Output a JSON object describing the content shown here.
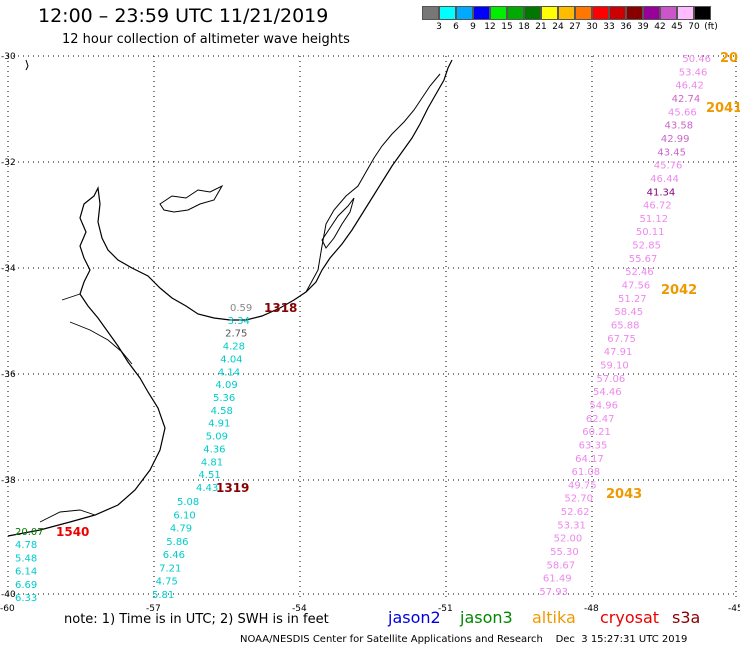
{
  "header": {
    "title": "12:00 – 23:59 UTC 11/21/2019",
    "subtitle": "12 hour collection of altimeter wave heights"
  },
  "legend": {
    "colors": [
      "#777777",
      "#00ffff",
      "#00aaff",
      "#0000ff",
      "#00ee00",
      "#00aa00",
      "#007700",
      "#ffff00",
      "#ffbb00",
      "#ff7700",
      "#ff0000",
      "#cc0000",
      "#880000",
      "#990099",
      "#cc55cc",
      "#ffbbff",
      "#000000"
    ],
    "labels": [
      "3",
      "6",
      "9",
      "12",
      "15",
      "18",
      "21",
      "24",
      "27",
      "30",
      "33",
      "36",
      "39",
      "42",
      "45",
      "70",
      "(ft)"
    ]
  },
  "axes": {
    "lat_labels": [
      "-30",
      "-32",
      "-34",
      "-36",
      "-38",
      "-40"
    ],
    "lon_labels": [
      "-60",
      "-57",
      "-54",
      "-51",
      "-48",
      "-45"
    ]
  },
  "tracks": {
    "track_1318": {
      "label": "1318",
      "label_color": "#880000",
      "points": [
        {
          "v": "0.59",
          "c": "#888888"
        },
        {
          "v": "3.34",
          "c": "#00cccc"
        },
        {
          "v": "2.75",
          "c": "#555555"
        },
        {
          "v": "4.28",
          "c": "#00cccc"
        },
        {
          "v": "4.04",
          "c": "#00cccc"
        },
        {
          "v": "4.14",
          "c": "#00cccc"
        },
        {
          "v": "4.09",
          "c": "#00cccc"
        },
        {
          "v": "5.36",
          "c": "#00cccc"
        },
        {
          "v": "4.58",
          "c": "#00cccc"
        },
        {
          "v": "4.91",
          "c": "#00cccc"
        },
        {
          "v": "5.09",
          "c": "#00cccc"
        },
        {
          "v": "4.36",
          "c": "#00cccc"
        },
        {
          "v": "4.81",
          "c": "#00cccc"
        },
        {
          "v": "4.51",
          "c": "#00cccc"
        },
        {
          "v": "4.43",
          "c": "#00cccc"
        }
      ]
    },
    "track_1319": {
      "label": "1319",
      "label_color": "#880000",
      "points": [
        {
          "v": "5.08",
          "c": "#00cccc"
        },
        {
          "v": "6.10",
          "c": "#00cccc"
        },
        {
          "v": "4.79",
          "c": "#00cccc"
        },
        {
          "v": "5.86",
          "c": "#00cccc"
        },
        {
          "v": "6.46",
          "c": "#00cccc"
        },
        {
          "v": "7.21",
          "c": "#00cccc"
        },
        {
          "v": "4.75",
          "c": "#00cccc"
        },
        {
          "v": "5.81",
          "c": "#00cccc"
        }
      ]
    },
    "track_1540": {
      "label": "1540",
      "label_color": "#ee0000",
      "points": [
        {
          "v": "20.07",
          "c": "#007700"
        },
        {
          "v": "4.78",
          "c": "#00cccc"
        },
        {
          "v": "5.48",
          "c": "#00cccc"
        },
        {
          "v": "6.14",
          "c": "#00cccc"
        },
        {
          "v": "6.69",
          "c": "#00cccc"
        },
        {
          "v": "6.33",
          "c": "#00cccc"
        }
      ]
    },
    "track_east": {
      "markers": [
        {
          "label": "20",
          "color": "#ee9900"
        },
        {
          "label": "2041",
          "color": "#ee9900"
        },
        {
          "label": "2042",
          "color": "#ee9900"
        },
        {
          "label": "2043",
          "color": "#ee9900"
        }
      ],
      "points": [
        {
          "v": "50.46",
          "c": "#ee88ee"
        },
        {
          "v": "53.46",
          "c": "#ee88ee"
        },
        {
          "v": "46.42",
          "c": "#ee88ee"
        },
        {
          "v": "42.74",
          "c": "#cc66cc"
        },
        {
          "v": "45.66",
          "c": "#ee88ee"
        },
        {
          "v": "43.58",
          "c": "#cc66cc"
        },
        {
          "v": "42.99",
          "c": "#cc66cc"
        },
        {
          "v": "43.45",
          "c": "#cc66cc"
        },
        {
          "v": "45.76",
          "c": "#ee88ee"
        },
        {
          "v": "46.44",
          "c": "#ee88ee"
        },
        {
          "v": "41.34",
          "c": "#880088"
        },
        {
          "v": "46.72",
          "c": "#ee88ee"
        },
        {
          "v": "51.12",
          "c": "#ee88ee"
        },
        {
          "v": "50.11",
          "c": "#ee88ee"
        },
        {
          "v": "52.85",
          "c": "#ee88ee"
        },
        {
          "v": "55.67",
          "c": "#ee88ee"
        },
        {
          "v": "52.46",
          "c": "#ee88ee"
        },
        {
          "v": "47.56",
          "c": "#ee88ee"
        },
        {
          "v": "51.27",
          "c": "#ee88ee"
        },
        {
          "v": "58.45",
          "c": "#ee88ee"
        },
        {
          "v": "65.88",
          "c": "#ee88ee"
        },
        {
          "v": "67.75",
          "c": "#ee88ee"
        },
        {
          "v": "47.91",
          "c": "#ee88ee"
        },
        {
          "v": "59.10",
          "c": "#ee88ee"
        },
        {
          "v": "57.06",
          "c": "#ee88ee"
        },
        {
          "v": "54.46",
          "c": "#ee88ee"
        },
        {
          "v": "54.96",
          "c": "#ee88ee"
        },
        {
          "v": "62.47",
          "c": "#ee88ee"
        },
        {
          "v": "60.21",
          "c": "#ee88ee"
        },
        {
          "v": "63.35",
          "c": "#ee88ee"
        },
        {
          "v": "64.17",
          "c": "#ee88ee"
        },
        {
          "v": "61.08",
          "c": "#ee88ee"
        },
        {
          "v": "49.75",
          "c": "#ee88ee"
        },
        {
          "v": "52.70",
          "c": "#ee88ee"
        },
        {
          "v": "52.62",
          "c": "#ee88ee"
        },
        {
          "v": "53.31",
          "c": "#ee88ee"
        },
        {
          "v": "52.00",
          "c": "#ee88ee"
        },
        {
          "v": "55.30",
          "c": "#ee88ee"
        },
        {
          "v": "58.67",
          "c": "#ee88ee"
        },
        {
          "v": "61.49",
          "c": "#ee88ee"
        },
        {
          "v": "57.93",
          "c": "#ee88ee"
        }
      ]
    }
  },
  "note": "note: 1) Time is in UTC; 2) SWH is in feet",
  "satellites": [
    {
      "name": "jason2",
      "color": "#0000dd"
    },
    {
      "name": "jason3",
      "color": "#008800"
    },
    {
      "name": "altika",
      "color": "#ee9900"
    },
    {
      "name": "cryosat",
      "color": "#ee0000"
    },
    {
      "name": "s3a",
      "color": "#880000"
    }
  ],
  "footer": "NOAA/NESDIS Center for Satellite Applications and Research    Dec  3 15:27:31 UTC 2019"
}
